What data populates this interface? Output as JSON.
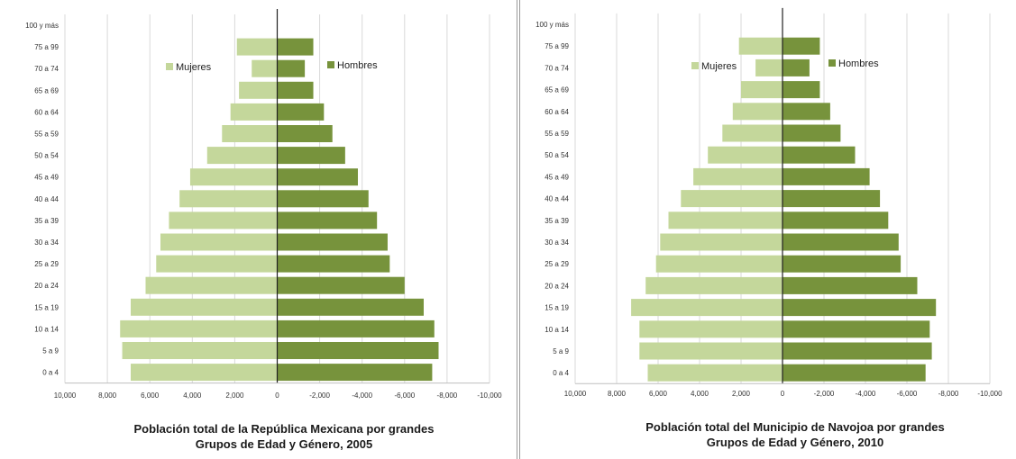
{
  "chart_data": [
    {
      "type": "bar",
      "orientation": "horizontal",
      "layout": "population-pyramid",
      "title": [
        "Población total de la República Mexicana por grandes",
        "Grupos de Edad y Género, 2005"
      ],
      "categories": [
        "100 y más",
        "75 a 99",
        "70 a 74",
        "65 a 69",
        "60 a 64",
        "55 a 59",
        "50 a 54",
        "45 a 49",
        "40 a 44",
        "35 a 39",
        "30 a 34",
        "25 a 29",
        "20 a 24",
        "15 a 19",
        "10 a 14",
        "5 a 9",
        "0 a 4"
      ],
      "x_ticks": [
        "10,000",
        "8,000",
        "6,000",
        "4,000",
        "2,000",
        "0",
        "-2,000",
        "-4,000",
        "-6,000",
        "-8,000",
        "-10,000"
      ],
      "xlim": [
        10000,
        -10000
      ],
      "grid": true,
      "legend_placement": "top",
      "series": [
        {
          "name": "Mujeres",
          "color": "#c4d79b",
          "values": [
            0,
            1900,
            1200,
            1800,
            2200,
            2600,
            3300,
            4100,
            4600,
            5100,
            5500,
            5700,
            6200,
            6900,
            7400,
            7300,
            6900
          ]
        },
        {
          "name": "Hombres",
          "color": "#77933c",
          "values": [
            0,
            1700,
            1300,
            1700,
            2200,
            2600,
            3200,
            3800,
            4300,
            4700,
            5200,
            5300,
            6000,
            6900,
            7400,
            7600,
            7300
          ]
        }
      ]
    },
    {
      "type": "bar",
      "orientation": "horizontal",
      "layout": "population-pyramid",
      "title": [
        "Población total del Municipio de Navojoa por grandes",
        "Grupos de Edad y Género, 2010"
      ],
      "categories": [
        "100 y más",
        "75 a 99",
        "70 a 74",
        "65 a 69",
        "60 a 64",
        "55 a 59",
        "50 a 54",
        "45 a 49",
        "40 a 44",
        "35 a 39",
        "30 a 34",
        "25 a 29",
        "20 a 24",
        "15 a 19",
        "10 a 14",
        "5 a 9",
        "0 a 4"
      ],
      "x_ticks": [
        "10,000",
        "8,000",
        "6,000",
        "4,000",
        "2,000",
        "0",
        "-2,000",
        "-4,000",
        "-6,000",
        "-8,000",
        "-10,000"
      ],
      "xlim": [
        10000,
        -10000
      ],
      "grid": true,
      "legend_placement": "top",
      "series": [
        {
          "name": "Mujeres",
          "color": "#c4d79b",
          "values": [
            0,
            2100,
            1300,
            2000,
            2400,
            2900,
            3600,
            4300,
            4900,
            5500,
            5900,
            6100,
            6600,
            7300,
            6900,
            6900,
            6500
          ]
        },
        {
          "name": "Hombres",
          "color": "#77933c",
          "values": [
            0,
            1800,
            1300,
            1800,
            2300,
            2800,
            3500,
            4200,
            4700,
            5100,
            5600,
            5700,
            6500,
            7400,
            7100,
            7200,
            6900
          ]
        }
      ]
    }
  ]
}
